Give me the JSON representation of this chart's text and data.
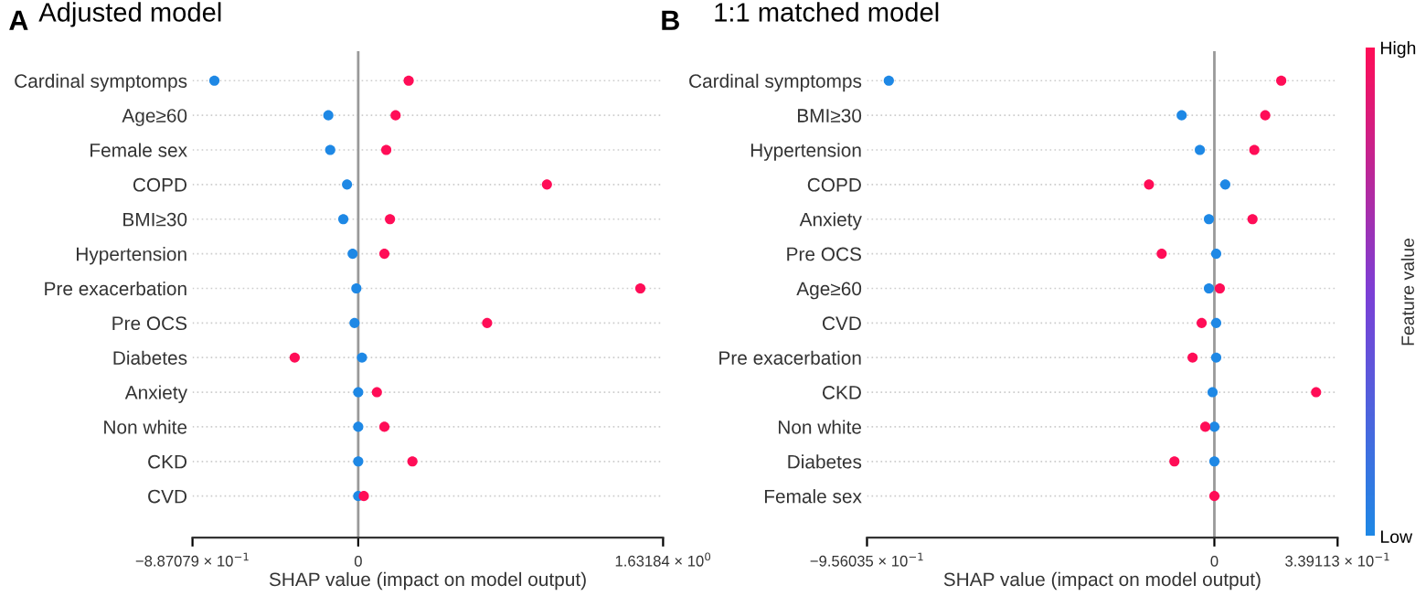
{
  "chart_data": [
    {
      "type": "scatter",
      "orientation": "horizontal",
      "title": "Adjusted model",
      "annotations": [
        "A"
      ],
      "xlabel": "SHAP value (impact on model output)",
      "categories": [
        "Cardinal symptomps",
        "Age≥60",
        "Female sex",
        "COPD",
        "BMI≥30",
        "Hypertension",
        "Pre exacerbation",
        "Pre OCS",
        "Diabetes",
        "Anxiety",
        "Non white",
        "CKD",
        "CVD"
      ],
      "series": [
        {
          "color": "#1e88e5",
          "values": [
            -0.77,
            -0.16,
            -0.15,
            -0.06,
            -0.08,
            -0.03,
            -0.01,
            -0.02,
            0.02,
            0.0,
            0.0,
            0.0,
            0.0
          ]
        },
        {
          "color": "#ff0d57",
          "values": [
            0.27,
            0.2,
            0.15,
            1.01,
            0.17,
            0.14,
            1.51,
            0.69,
            -0.34,
            0.1,
            0.14,
            0.29,
            0.03
          ]
        }
      ],
      "xlim": [
        -0.887079,
        1.63184
      ],
      "xticks": [
        {
          "value": -0.887079,
          "label": "−8.87079 × 10$^{−1}$"
        },
        0,
        {
          "value": 1.63184,
          "label": "1.63184 × 10$^{0}$"
        }
      ],
      "ref_lines": [
        {
          "axis": "x",
          "value": 0,
          "color": "#999999"
        }
      ],
      "grid": "y",
      "marker": "circle"
    },
    {
      "type": "scatter",
      "orientation": "horizontal",
      "title": "1:1 matched model",
      "annotations": [
        "B"
      ],
      "xlabel": "SHAP value (impact on model output)",
      "categories": [
        "Cardinal symptomps",
        "BMI≥30",
        "Hypertension",
        "COPD",
        "Anxiety",
        "Pre OCS",
        "Age≥60",
        "CVD",
        "Pre exacerbation",
        "CKD",
        "Non white",
        "Diabetes",
        "Female sex"
      ],
      "series": [
        {
          "values": [
            -0.896,
            -0.09,
            -0.04,
            0.03,
            -0.015,
            0.005,
            -0.015,
            0.005,
            0.005,
            -0.005,
            0.0,
            0.0,
            null
          ],
          "cvalues": [
            0,
            0,
            0,
            0,
            0,
            0,
            0,
            0,
            0,
            0,
            0,
            0,
            null
          ]
        },
        {
          "values": [
            0.184,
            0.14,
            0.11,
            -0.18,
            0.105,
            -0.145,
            0.015,
            -0.035,
            -0.06,
            0.28,
            -0.025,
            -0.11,
            0.0
          ],
          "cvalues": [
            1,
            1,
            1,
            1,
            1,
            1,
            1,
            1,
            1,
            1,
            1,
            1,
            1
          ]
        }
      ],
      "xlim": [
        -0.956035,
        0.339113
      ],
      "xticks": [
        {
          "value": -0.956035,
          "label": "−9.56035 × 10$^{−1}$"
        },
        0,
        {
          "value": 0.339113,
          "label": "3.39113 × 10$^{−1}$"
        }
      ],
      "ref_lines": [
        {
          "axis": "x",
          "value": 0,
          "color": "#999999"
        }
      ],
      "grid": "y",
      "marker": "circle",
      "clabel": "Feature value",
      "clim": [
        0,
        1
      ],
      "cticks": [
        {
          "value": 0,
          "label": "Low"
        },
        {
          "value": 1,
          "label": "High"
        }
      ]
    }
  ]
}
